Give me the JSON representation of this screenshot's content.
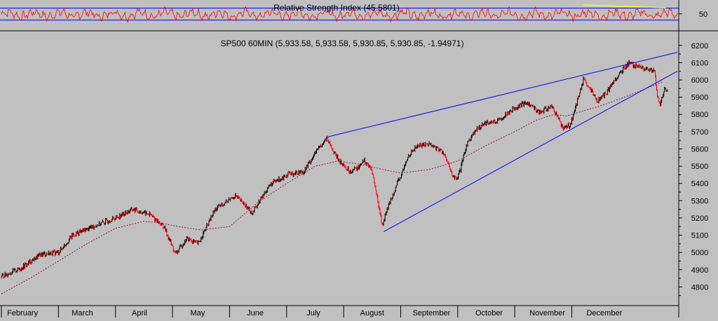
{
  "chart_data": [
    {
      "type": "line",
      "name": "rsi-panel",
      "title": "Relative Strength Index (45.5801)",
      "ylim": [
        35,
        62
      ],
      "reference_lines": [
        55.5,
        44
      ],
      "y_ticks": [
        {
          "value": 50,
          "label": "50"
        }
      ],
      "line_color": "#ff0000",
      "reference_color": "#0000ff",
      "trend_line": {
        "x": [
          10.2,
          11.65
        ],
        "y": [
          58.5,
          55.8
        ],
        "color": "#ffff00"
      },
      "x_range": [
        0,
        11.85
      ],
      "base": 49.5,
      "amplitude": 4.5
    },
    {
      "type": "line",
      "name": "price-panel",
      "title": "SP500 60MIN (5,933.58, 5,933.58, 5,930.85, 5,930.85, -1.94971)",
      "ylim": [
        4700,
        6260
      ],
      "x_range": [
        0,
        11.85
      ],
      "y_ticks": [
        {
          "value": 6200,
          "label": "6200"
        },
        {
          "value": 6100,
          "label": "6100"
        },
        {
          "value": 6000,
          "label": "6000"
        },
        {
          "value": 5900,
          "label": "5900"
        },
        {
          "value": 5800,
          "label": "5800"
        },
        {
          "value": 5700,
          "label": "5700"
        },
        {
          "value": 5600,
          "label": "5600"
        },
        {
          "value": 5500,
          "label": "5500"
        },
        {
          "value": 5400,
          "label": "5400"
        },
        {
          "value": 5300,
          "label": "5300"
        },
        {
          "value": 5200,
          "label": "5200"
        },
        {
          "value": 5100,
          "label": "5100"
        },
        {
          "value": 5000,
          "label": "5000"
        },
        {
          "value": 4900,
          "label": "4900"
        },
        {
          "value": 4800,
          "label": "4800"
        }
      ],
      "x_labels": [
        {
          "x": 0.37,
          "label": "February"
        },
        {
          "x": 1.42,
          "label": "March"
        },
        {
          "x": 2.42,
          "label": "April"
        },
        {
          "x": 3.44,
          "label": "May"
        },
        {
          "x": 4.45,
          "label": "June"
        },
        {
          "x": 5.47,
          "label": "July"
        },
        {
          "x": 6.5,
          "label": "August"
        },
        {
          "x": 7.54,
          "label": "September"
        },
        {
          "x": 8.55,
          "label": "October"
        },
        {
          "x": 9.57,
          "label": "November"
        },
        {
          "x": 10.57,
          "label": "December"
        }
      ],
      "price": {
        "x": [
          0,
          0.35,
          0.7,
          1.0,
          1.25,
          1.6,
          2.0,
          2.3,
          2.6,
          2.85,
          3.05,
          3.25,
          3.45,
          3.75,
          4.1,
          4.4,
          4.7,
          5.0,
          5.3,
          5.55,
          5.7,
          5.9,
          6.1,
          6.25,
          6.35,
          6.5,
          6.62,
          6.68,
          6.72,
          6.8,
          6.9,
          7.0,
          7.15,
          7.3,
          7.5,
          7.75,
          7.9,
          7.98,
          8.05,
          8.15,
          8.25,
          8.45,
          8.7,
          8.95,
          9.2,
          9.45,
          9.65,
          9.85,
          9.97,
          10.05,
          10.2,
          10.45,
          10.6,
          10.75,
          11.0,
          11.1,
          11.3,
          11.45,
          11.5,
          11.55,
          11.62,
          11.68
        ],
        "y": [
          4860,
          4910,
          4990,
          5000,
          5100,
          5150,
          5200,
          5250,
          5220,
          5150,
          4990,
          5080,
          5050,
          5250,
          5330,
          5230,
          5390,
          5450,
          5470,
          5600,
          5660,
          5540,
          5470,
          5490,
          5540,
          5470,
          5260,
          5150,
          5210,
          5280,
          5370,
          5440,
          5570,
          5620,
          5630,
          5580,
          5450,
          5420,
          5480,
          5620,
          5680,
          5750,
          5760,
          5830,
          5870,
          5810,
          5850,
          5720,
          5740,
          5820,
          6000,
          5880,
          5920,
          6000,
          6100,
          6080,
          6060,
          6050,
          5900,
          5850,
          5950,
          5930
        ],
        "candle_color": "#000000",
        "down_color": "#ff0000"
      },
      "moving_average": {
        "x": [
          0,
          0.5,
          1.0,
          1.5,
          2.0,
          2.5,
          2.8,
          3.1,
          3.5,
          4.0,
          4.5,
          5.0,
          5.5,
          5.9,
          6.3,
          6.7,
          7.0,
          7.5,
          8.0,
          8.5,
          9.0,
          9.4,
          9.7,
          9.9,
          10.2,
          10.6,
          11.0,
          11.3,
          11.6
        ],
        "y": [
          4760,
          4850,
          4950,
          5050,
          5140,
          5180,
          5170,
          5150,
          5130,
          5150,
          5290,
          5400,
          5500,
          5530,
          5510,
          5480,
          5460,
          5480,
          5530,
          5620,
          5700,
          5770,
          5800,
          5790,
          5820,
          5860,
          5910,
          5950,
          5990
        ],
        "color": "#800040"
      },
      "trend_lines": [
        {
          "x": [
            5.72,
            11.85
          ],
          "y": [
            5670,
            6160
          ],
          "color": "#0000ff"
        },
        {
          "x": [
            6.7,
            11.85
          ],
          "y": [
            5120,
            6050
          ],
          "color": "#0000ff"
        }
      ]
    }
  ]
}
